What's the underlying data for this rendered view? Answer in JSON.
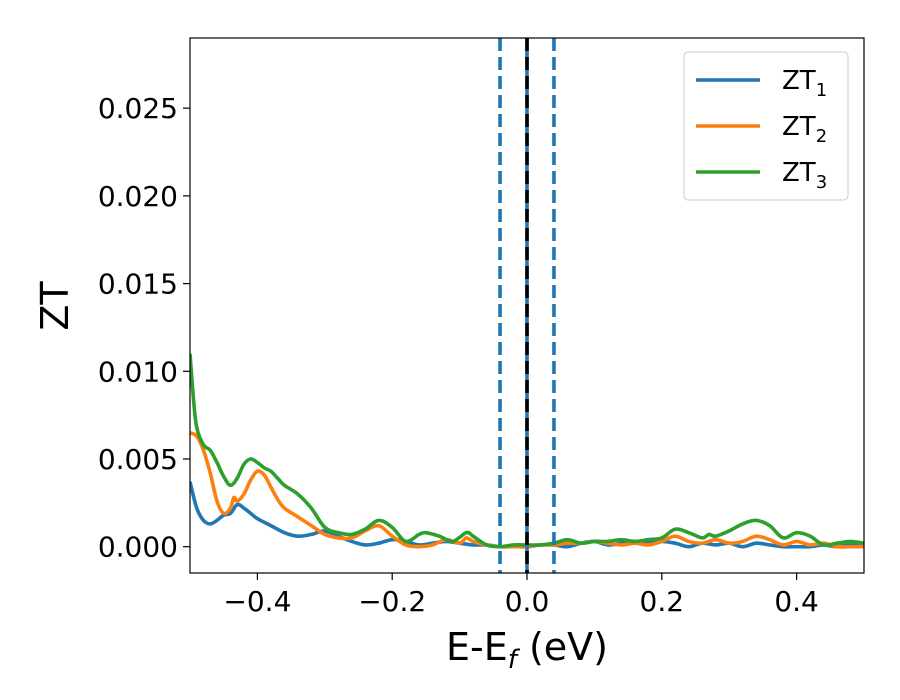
{
  "chart_data": {
    "type": "line",
    "xlabel_main": "E-E",
    "xlabel_sub": "f",
    "xlabel_unit": " (eV)",
    "ylabel": "ZT",
    "xlim": [
      -0.5,
      0.5
    ],
    "ylim": [
      -0.0015,
      0.029
    ],
    "x_ticks": [
      -0.4,
      -0.2,
      0.0,
      0.2,
      0.4
    ],
    "x_tick_labels": [
      "−0.4",
      "−0.2",
      "0.0",
      "0.2",
      "0.4"
    ],
    "y_ticks": [
      0.0,
      0.005,
      0.01,
      0.015,
      0.02,
      0.025
    ],
    "y_tick_labels": [
      "0.000",
      "0.005",
      "0.010",
      "0.015",
      "0.020",
      "0.025"
    ],
    "grid": false,
    "legend_position": "top-right",
    "vertical_lines": [
      {
        "x": -0.04,
        "style": "dashed",
        "color": "#1f77b4"
      },
      {
        "x": 0.0,
        "style": "solid",
        "color": "#1f77b4"
      },
      {
        "x": 0.0,
        "style": "dashed",
        "color": "#000000"
      },
      {
        "x": 0.04,
        "style": "dashed",
        "color": "#1f77b4"
      }
    ],
    "series": [
      {
        "name": "ZT",
        "sub": "1",
        "color": "#1f77b4",
        "points": [
          [
            -0.5,
            0.0037
          ],
          [
            -0.49,
            0.0022
          ],
          [
            -0.48,
            0.0015
          ],
          [
            -0.47,
            0.0013
          ],
          [
            -0.46,
            0.0015
          ],
          [
            -0.45,
            0.0018
          ],
          [
            -0.44,
            0.0019
          ],
          [
            -0.43,
            0.0024
          ],
          [
            -0.42,
            0.0022
          ],
          [
            -0.41,
            0.0019
          ],
          [
            -0.4,
            0.0016
          ],
          [
            -0.38,
            0.0012
          ],
          [
            -0.36,
            0.0008
          ],
          [
            -0.34,
            0.0006
          ],
          [
            -0.32,
            0.0007
          ],
          [
            -0.3,
            0.0009
          ],
          [
            -0.28,
            0.0006
          ],
          [
            -0.26,
            0.0003
          ],
          [
            -0.24,
            0.0001
          ],
          [
            -0.22,
            0.0002
          ],
          [
            -0.2,
            0.0004
          ],
          [
            -0.18,
            0.0003
          ],
          [
            -0.16,
            0.0001
          ],
          [
            -0.14,
            0.0002
          ],
          [
            -0.12,
            0.0003
          ],
          [
            -0.1,
            0.0002
          ],
          [
            -0.08,
            0.0001
          ],
          [
            -0.06,
            0.0001
          ],
          [
            -0.04,
            0.0
          ],
          [
            -0.02,
            0.0
          ],
          [
            0.0,
            0.0
          ],
          [
            0.02,
            0.0001
          ],
          [
            0.04,
            0.0001
          ],
          [
            0.06,
            0.0
          ],
          [
            0.08,
            0.0002
          ],
          [
            0.1,
            0.0003
          ],
          [
            0.12,
            0.0001
          ],
          [
            0.14,
            0.0002
          ],
          [
            0.16,
            0.0003
          ],
          [
            0.18,
            0.0002
          ],
          [
            0.2,
            0.0003
          ],
          [
            0.22,
            0.0002
          ],
          [
            0.24,
            0.0
          ],
          [
            0.26,
            0.0002
          ],
          [
            0.28,
            0.0001
          ],
          [
            0.3,
            0.0002
          ],
          [
            0.32,
            0.0
          ],
          [
            0.34,
            0.0002
          ],
          [
            0.36,
            0.0001
          ],
          [
            0.38,
            0.0
          ],
          [
            0.4,
            0.0
          ],
          [
            0.42,
            0.0
          ],
          [
            0.44,
            0.0001
          ],
          [
            0.46,
            0.0
          ],
          [
            0.48,
            0.0001
          ],
          [
            0.5,
            0.0
          ]
        ]
      },
      {
        "name": "ZT",
        "sub": "2",
        "color": "#ff7f0e",
        "points": [
          [
            -0.5,
            0.0065
          ],
          [
            -0.49,
            0.0063
          ],
          [
            -0.48,
            0.0055
          ],
          [
            -0.47,
            0.0042
          ],
          [
            -0.46,
            0.0026
          ],
          [
            -0.45,
            0.0019
          ],
          [
            -0.44,
            0.0022
          ],
          [
            -0.435,
            0.0028
          ],
          [
            -0.43,
            0.0026
          ],
          [
            -0.42,
            0.003
          ],
          [
            -0.41,
            0.0038
          ],
          [
            -0.4,
            0.0043
          ],
          [
            -0.39,
            0.0041
          ],
          [
            -0.38,
            0.0034
          ],
          [
            -0.37,
            0.0027
          ],
          [
            -0.36,
            0.0022
          ],
          [
            -0.34,
            0.0017
          ],
          [
            -0.32,
            0.0012
          ],
          [
            -0.3,
            0.0007
          ],
          [
            -0.28,
            0.0005
          ],
          [
            -0.26,
            0.0005
          ],
          [
            -0.24,
            0.0009
          ],
          [
            -0.22,
            0.0012
          ],
          [
            -0.2,
            0.0006
          ],
          [
            -0.18,
            0.0001
          ],
          [
            -0.16,
            0.0
          ],
          [
            -0.14,
            0.0001
          ],
          [
            -0.12,
            0.0004
          ],
          [
            -0.1,
            0.0002
          ],
          [
            -0.09,
            0.0005
          ],
          [
            -0.08,
            0.0003
          ],
          [
            -0.06,
            0.0001
          ],
          [
            -0.04,
            0.0
          ],
          [
            -0.02,
            0.0
          ],
          [
            0.0,
            0.0
          ],
          [
            0.02,
            0.0001
          ],
          [
            0.04,
            0.0001
          ],
          [
            0.06,
            0.0002
          ],
          [
            0.08,
            0.0002
          ],
          [
            0.1,
            0.0003
          ],
          [
            0.12,
            0.0002
          ],
          [
            0.14,
            0.0001
          ],
          [
            0.16,
            0.0002
          ],
          [
            0.18,
            0.0001
          ],
          [
            0.2,
            0.0003
          ],
          [
            0.22,
            0.0006
          ],
          [
            0.24,
            0.0003
          ],
          [
            0.26,
            0.0002
          ],
          [
            0.28,
            0.0004
          ],
          [
            0.3,
            0.0002
          ],
          [
            0.32,
            0.0003
          ],
          [
            0.34,
            0.0006
          ],
          [
            0.36,
            0.0004
          ],
          [
            0.38,
            0.0001
          ],
          [
            0.4,
            0.0003
          ],
          [
            0.42,
            0.0001
          ],
          [
            0.44,
            0.0002
          ],
          [
            0.46,
            0.0
          ],
          [
            0.48,
            0.0
          ],
          [
            0.5,
            0.0
          ]
        ]
      },
      {
        "name": "ZT",
        "sub": "3",
        "color": "#2ca02c",
        "points": [
          [
            -0.5,
            0.011
          ],
          [
            -0.495,
            0.0085
          ],
          [
            -0.49,
            0.0068
          ],
          [
            -0.48,
            0.0058
          ],
          [
            -0.47,
            0.0055
          ],
          [
            -0.46,
            0.0048
          ],
          [
            -0.45,
            0.004
          ],
          [
            -0.44,
            0.0035
          ],
          [
            -0.43,
            0.0039
          ],
          [
            -0.42,
            0.0047
          ],
          [
            -0.41,
            0.005
          ],
          [
            -0.4,
            0.0048
          ],
          [
            -0.39,
            0.0045
          ],
          [
            -0.38,
            0.0043
          ],
          [
            -0.37,
            0.0039
          ],
          [
            -0.36,
            0.0035
          ],
          [
            -0.34,
            0.003
          ],
          [
            -0.32,
            0.0022
          ],
          [
            -0.3,
            0.0011
          ],
          [
            -0.28,
            0.0008
          ],
          [
            -0.26,
            0.0007
          ],
          [
            -0.24,
            0.001
          ],
          [
            -0.22,
            0.0015
          ],
          [
            -0.2,
            0.0011
          ],
          [
            -0.18,
            0.0003
          ],
          [
            -0.16,
            0.0007
          ],
          [
            -0.15,
            0.0008
          ],
          [
            -0.13,
            0.0006
          ],
          [
            -0.11,
            0.0003
          ],
          [
            -0.09,
            0.0008
          ],
          [
            -0.08,
            0.0006
          ],
          [
            -0.06,
            0.0001
          ],
          [
            -0.04,
            0.0
          ],
          [
            -0.02,
            0.0001
          ],
          [
            0.0,
            0.0001
          ],
          [
            0.02,
            0.0001
          ],
          [
            0.04,
            0.0002
          ],
          [
            0.06,
            0.0004
          ],
          [
            0.08,
            0.0002
          ],
          [
            0.1,
            0.0003
          ],
          [
            0.12,
            0.0003
          ],
          [
            0.14,
            0.0004
          ],
          [
            0.16,
            0.0003
          ],
          [
            0.18,
            0.0004
          ],
          [
            0.2,
            0.0005
          ],
          [
            0.22,
            0.001
          ],
          [
            0.24,
            0.0008
          ],
          [
            0.26,
            0.0005
          ],
          [
            0.27,
            0.0007
          ],
          [
            0.28,
            0.0006
          ],
          [
            0.3,
            0.0009
          ],
          [
            0.32,
            0.0013
          ],
          [
            0.34,
            0.0015
          ],
          [
            0.36,
            0.0012
          ],
          [
            0.38,
            0.0005
          ],
          [
            0.4,
            0.0008
          ],
          [
            0.42,
            0.0006
          ],
          [
            0.44,
            0.0001
          ],
          [
            0.46,
            0.0002
          ],
          [
            0.48,
            0.0003
          ],
          [
            0.5,
            0.0002
          ]
        ]
      }
    ]
  }
}
